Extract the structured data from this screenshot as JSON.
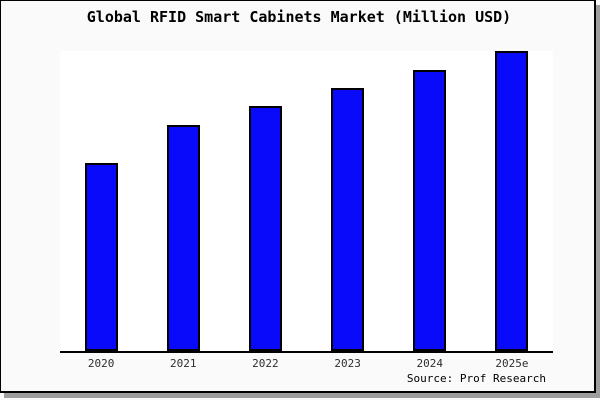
{
  "window": {
    "bg_color": "#fafafa",
    "border_color": "#000000",
    "shadow_color": "#9e9e9e"
  },
  "chart_data": {
    "type": "bar",
    "title": "Global RFID Smart Cabinets Market (Million USD)",
    "categories": [
      "2020",
      "2021",
      "2022",
      "2023",
      "2024",
      "2025e"
    ],
    "values": [
      62.8,
      75.2,
      81.6,
      87.6,
      93.7,
      100
    ],
    "unit": "Million USD",
    "xlabel": "",
    "ylabel": "",
    "ylim": [
      0,
      100
    ],
    "y_axis_labels_visible": false,
    "grid": false,
    "legend": false,
    "plot_bg": "#ffffff",
    "bar_color": "#0a0afa",
    "bar_border_color": "#000000",
    "source": "Source: Prof Research"
  }
}
